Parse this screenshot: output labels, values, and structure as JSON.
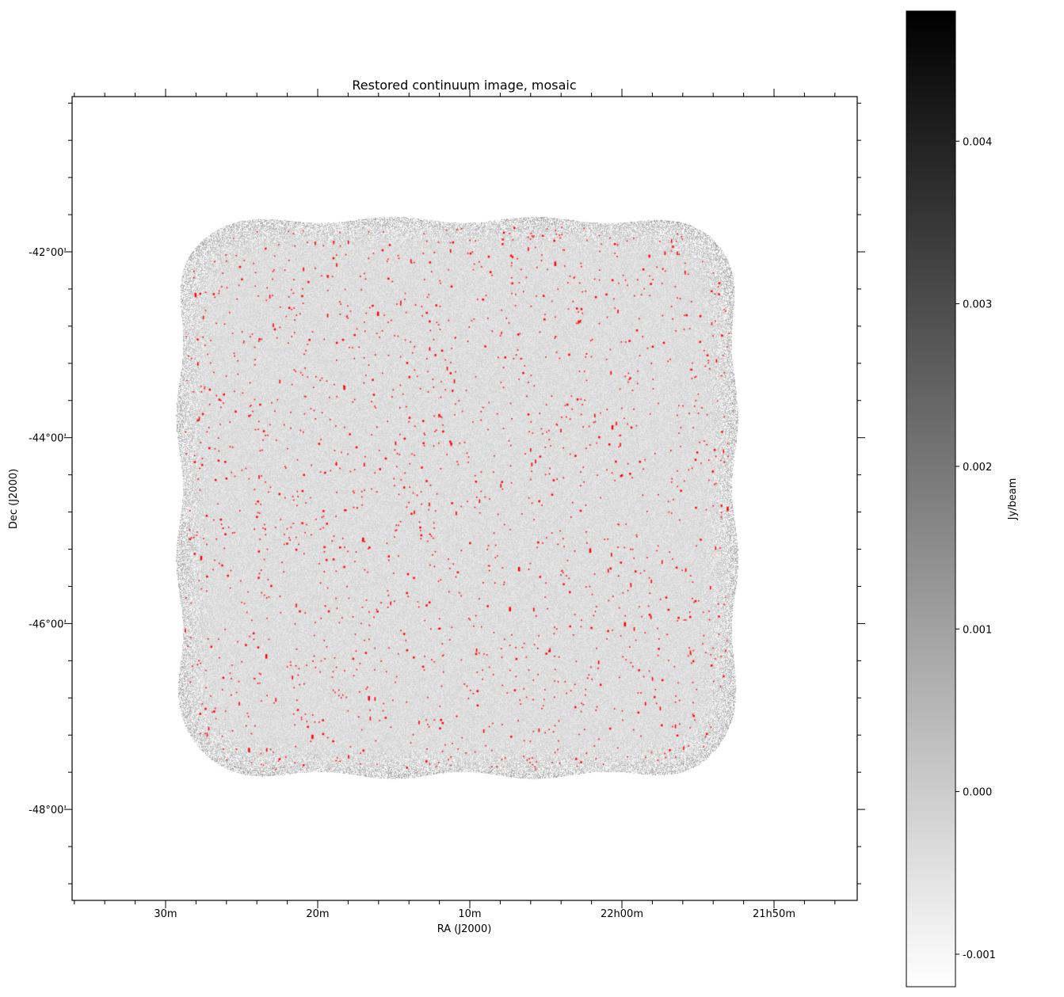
{
  "chart_data": {
    "type": "heatmap",
    "title": "Restored continuum image, mosaic",
    "xlabel": "RA (J2000)",
    "ylabel": "Dec (J2000)",
    "x_ticks": [
      "30m",
      "20m",
      "10m",
      "22h00m",
      "21h50m"
    ],
    "y_ticks": [
      "-42°00'",
      "-44°00'",
      "-46°00'",
      "-48°00'"
    ],
    "colormap": "grey (white to black)",
    "colorbar": {
      "label": "Jy/beam",
      "ticks": [
        "0.004",
        "0.003",
        "0.002",
        "0.001",
        "0.000",
        "-0.001"
      ],
      "tick_values": [
        0.004,
        0.003,
        0.002,
        0.001,
        0.0,
        -0.001
      ],
      "range": [
        -0.0012,
        0.0048
      ]
    },
    "overlay": {
      "marker": "source components",
      "color": "#ff0000"
    },
    "grid": false
  }
}
